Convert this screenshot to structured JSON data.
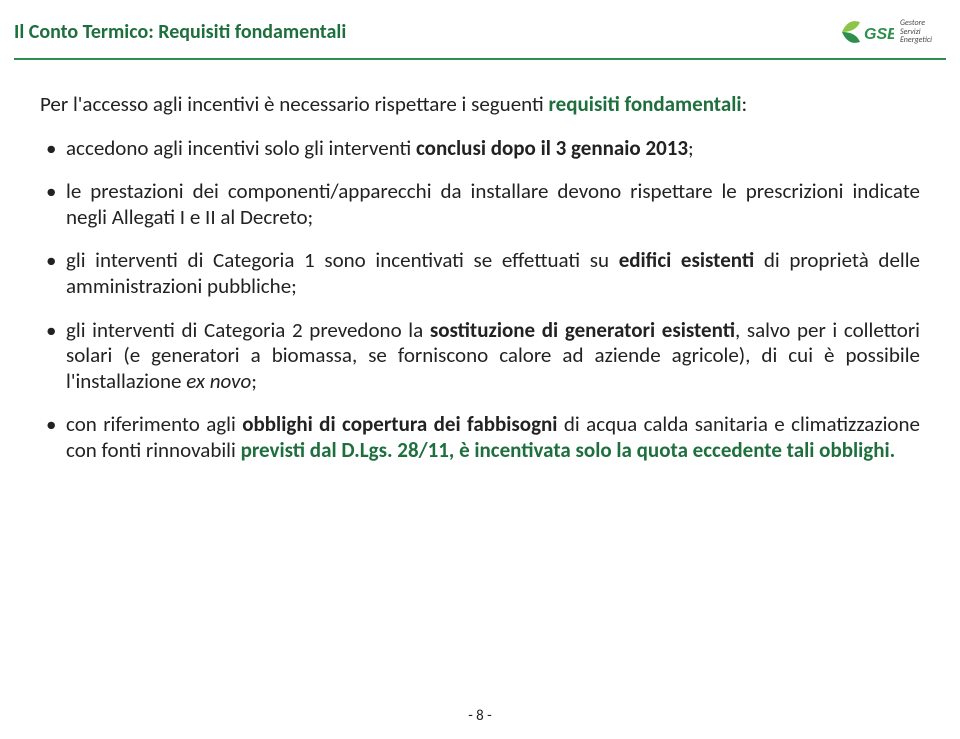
{
  "header": {
    "title_part1": "Il Conto Termico: ",
    "title_part2": "Requisiti fondamentali",
    "logo_big": "GSE",
    "logo_line1": "Gestore",
    "logo_line2": "Servizi",
    "logo_line3": "Energetici"
  },
  "colors": {
    "brand_green": "#1f6f3e",
    "rule_green": "#2e8f4d",
    "leaf_light": "#8ec549",
    "leaf_dark": "#2e8f4d",
    "text": "#222222",
    "logo_grey": "#4a4a4a"
  },
  "intro": {
    "pre": "Per l'accesso agli incentivi è necessario rispettare i seguenti ",
    "accent": "requisiti fondamentali",
    "post": ":"
  },
  "bullets": [
    {
      "parts": [
        {
          "t": "accedono agli incentivi solo gli interventi "
        },
        {
          "t": "conclusi dopo il 3 gennaio 2013",
          "b": true
        },
        {
          "t": ";"
        }
      ]
    },
    {
      "parts": [
        {
          "t": "le prestazioni dei componenti/apparecchi da installare devono rispettare le prescrizioni indicate negli Allegati I e II al Decreto;"
        }
      ]
    },
    {
      "parts": [
        {
          "t": "gli interventi di Categoria 1 sono incentivati se effettuati su "
        },
        {
          "t": "edifici esistenti",
          "b": true
        },
        {
          "t": " di proprietà delle amministrazioni pubbliche;"
        }
      ]
    },
    {
      "parts": [
        {
          "t": "gli interventi di Categoria 2 prevedono la "
        },
        {
          "t": "sostituzione di generatori esistenti",
          "b": true
        },
        {
          "t": ", salvo per i collettori solari (e generatori a biomassa, se forniscono calore ad aziende agricole), di cui è possibile l'installazione "
        },
        {
          "t": "ex novo",
          "i": true
        },
        {
          "t": ";"
        }
      ]
    },
    {
      "parts": [
        {
          "t": "con riferimento agli "
        },
        {
          "t": "obblighi di copertura dei fabbisogni",
          "b": true
        },
        {
          "t": " di acqua calda sanitaria e climatizzazione con fonti rinnovabili "
        },
        {
          "t": "previsti dal D.Lgs. 28/11, è incentivata solo la quota eccedente tali obblighi.",
          "accent": true
        }
      ]
    }
  ],
  "page": "- 8 -"
}
